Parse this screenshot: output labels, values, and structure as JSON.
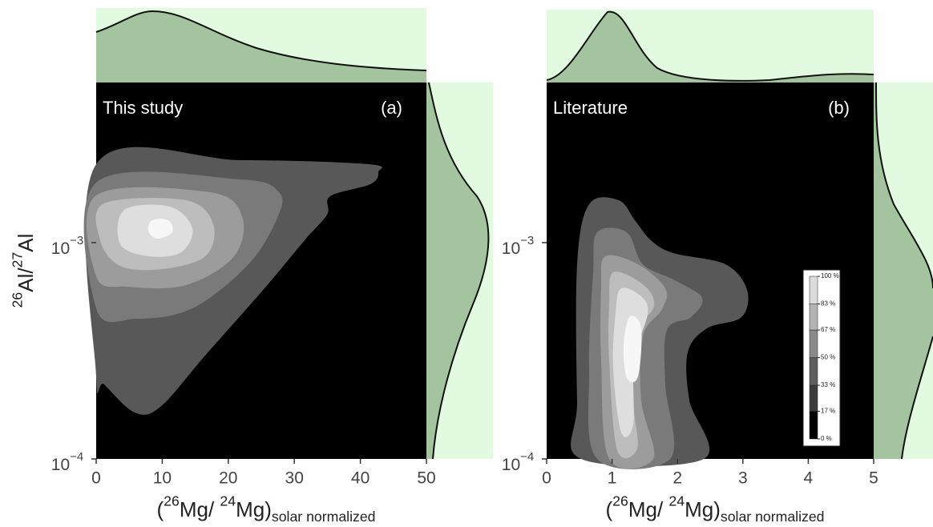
{
  "chart_data": [
    {
      "type": "contour",
      "panel_label": "(a)",
      "annotation": "This study",
      "y_label": [
        {
          "text": "26",
          "style": "sup"
        },
        {
          "text": "Al/"
        },
        {
          "text": "27",
          "style": "sup"
        },
        {
          "text": "Al"
        }
      ],
      "x_label": [
        {
          "text": "("
        },
        {
          "text": "26",
          "style": "sup"
        },
        {
          "text": "Mg/ "
        },
        {
          "text": "24",
          "style": "sup"
        },
        {
          "text": "Mg)"
        },
        {
          "text": "solar normalized",
          "style": "sub"
        }
      ],
      "xlim": [
        0,
        50
      ],
      "xticks": [
        0,
        10,
        20,
        30,
        40,
        50
      ],
      "ylim": [
        0.0001,
        0.0055
      ],
      "log_y": true,
      "yticks": [
        {
          "value": 0.0001,
          "label": "10",
          "sup": "−4"
        },
        {
          "value": 0.001,
          "label": "10",
          "sup": "−3"
        }
      ]
    },
    {
      "type": "contour",
      "panel_label": "(b)",
      "annotation": "Literature",
      "x_label": [
        {
          "text": "("
        },
        {
          "text": "26",
          "style": "sup"
        },
        {
          "text": "Mg/ "
        },
        {
          "text": "24",
          "style": "sup"
        },
        {
          "text": "Mg)"
        },
        {
          "text": "solar normalized",
          "style": "sub"
        }
      ],
      "xlim": [
        0,
        5
      ],
      "xticks": [
        0,
        1,
        2,
        3,
        4,
        5
      ],
      "ylim": [
        0.0001,
        0.0055
      ],
      "log_y": true,
      "yticks": [
        {
          "value": 0.0001,
          "label": "10",
          "sup": "−4"
        },
        {
          "value": 0.001,
          "label": "10",
          "sup": "−3"
        }
      ],
      "legend": {
        "levels": [
          {
            "value": 0,
            "label": "0 %"
          },
          {
            "value": 17,
            "label": "17 %"
          },
          {
            "value": 33,
            "label": "33 %"
          },
          {
            "value": 50,
            "label": "50 %"
          },
          {
            "value": 67,
            "label": "67 %"
          },
          {
            "value": 83,
            "label": "83 %"
          },
          {
            "value": 100,
            "label": "100 %"
          }
        ],
        "colors": [
          "#000000",
          "#3c3c3c",
          "#5e5e5e",
          "#8a8a8a",
          "#b4b4b4",
          "#dcdcdc"
        ]
      }
    }
  ]
}
